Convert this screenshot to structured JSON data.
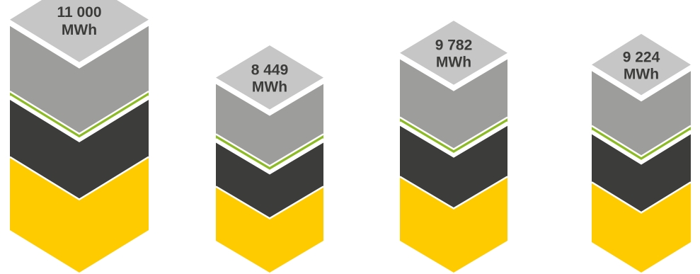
{
  "chart_data": {
    "type": "bar",
    "title": "",
    "xlabel": "",
    "ylabel": "",
    "categories": [
      "",
      "",
      "",
      ""
    ],
    "values": [
      11000,
      8449,
      9782,
      9224
    ],
    "labels": [
      [
        "11 000",
        "MWh"
      ],
      [
        "8 449",
        "MWh"
      ],
      [
        "9 782",
        "MWh"
      ],
      [
        "9 224",
        "MWh"
      ]
    ],
    "unit": "MWh"
  },
  "colors": {
    "top_face": "#c6c6c6",
    "upper_band": "#9d9d9c",
    "green_band": "#8dbb25",
    "dark_band": "#3c3c3b",
    "yellow_band": "#fecb00",
    "separator": "#ffffff",
    "label_text": "#3c3c3b"
  }
}
